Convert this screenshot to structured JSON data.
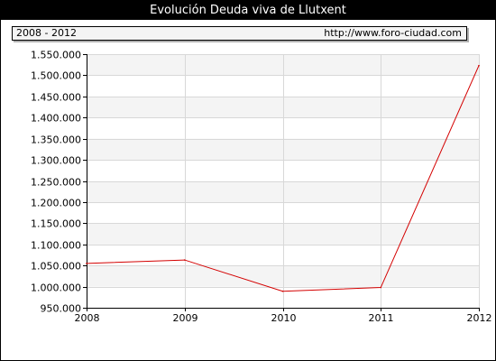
{
  "header": {
    "title": "Evolución Deuda viva de Llutxent"
  },
  "info_bar": {
    "period": "2008 - 2012",
    "source_url": "http://www.foro-ciudad.com"
  },
  "colors": {
    "line": "#d40000",
    "band": "#f4f4f4",
    "grid": "#d8d8d8"
  },
  "chart_data": {
    "type": "line",
    "title": "Evolución Deuda viva de Llutxent",
    "xlabel": "",
    "ylabel": "",
    "categories": [
      "2008",
      "2009",
      "2010",
      "2011",
      "2012"
    ],
    "series": [
      {
        "values": [
          1055000,
          1063000,
          989000,
          998000,
          1523000
        ]
      }
    ],
    "ylim": [
      950000,
      1550000
    ],
    "y_ticks": [
      950000,
      1000000,
      1050000,
      1100000,
      1150000,
      1200000,
      1250000,
      1300000,
      1350000,
      1400000,
      1450000,
      1500000,
      1550000
    ],
    "y_tick_labels": [
      "950.000",
      "1.000.000",
      "1.050.000",
      "1.100.000",
      "1.150.000",
      "1.200.000",
      "1.250.000",
      "1.300.000",
      "1.350.000",
      "1.400.000",
      "1.450.000",
      "1.500.000",
      "1.550.000"
    ],
    "grid": true
  }
}
